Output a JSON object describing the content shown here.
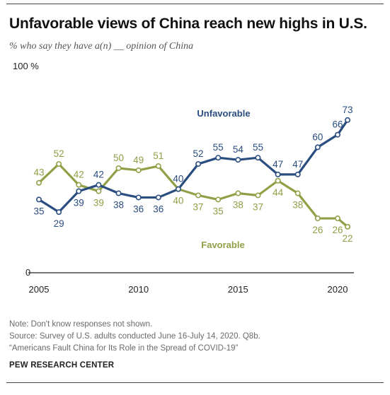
{
  "title": "Unfavorable views of China reach new highs in U.S.",
  "subtitle": "% who say they have a(n) __ opinion of China",
  "notes": {
    "note": "Note: Don't know responses not shown.",
    "source": "Source: Survey of U.S. adults conducted June 16-July 14, 2020. Q8b.",
    "report": "“Americans Fault China for Its Role in the Spread of COVID-19”"
  },
  "organization": "PEW RESEARCH CENTER",
  "colors": {
    "unfavorable": "#2a4d80",
    "favorable": "#8fa046",
    "axis": "#222222"
  },
  "chart_data": {
    "type": "line",
    "title": "Unfavorable views of China reach new highs in U.S.",
    "subtitle": "% who say they have a(n) __ opinion of China",
    "ylim": [
      0,
      100
    ],
    "y_tick_labels": [
      "0",
      "100 %"
    ],
    "x_tick_labels": [
      "2005",
      "2010",
      "2015",
      "2020"
    ],
    "grid": false,
    "series": [
      {
        "name": "Unfavorable",
        "color": "#2a4d80",
        "x": [
          2005,
          2006,
          2007,
          2008,
          2009,
          2010,
          2011,
          2012,
          2013,
          2014,
          2015,
          2016,
          2017,
          2018,
          2019,
          2020,
          2020.5
        ],
        "values": [
          35,
          29,
          39,
          42,
          38,
          36,
          36,
          40,
          52,
          55,
          54,
          55,
          47,
          47,
          60,
          66,
          73
        ]
      },
      {
        "name": "Favorable",
        "color": "#8fa046",
        "x": [
          2005,
          2006,
          2007,
          2008,
          2009,
          2010,
          2011,
          2012,
          2013,
          2014,
          2015,
          2016,
          2017,
          2018,
          2019,
          2020,
          2020.5
        ],
        "values": [
          43,
          52,
          42,
          39,
          50,
          49,
          51,
          40,
          37,
          35,
          38,
          37,
          44,
          38,
          26,
          26,
          22
        ]
      }
    ]
  }
}
